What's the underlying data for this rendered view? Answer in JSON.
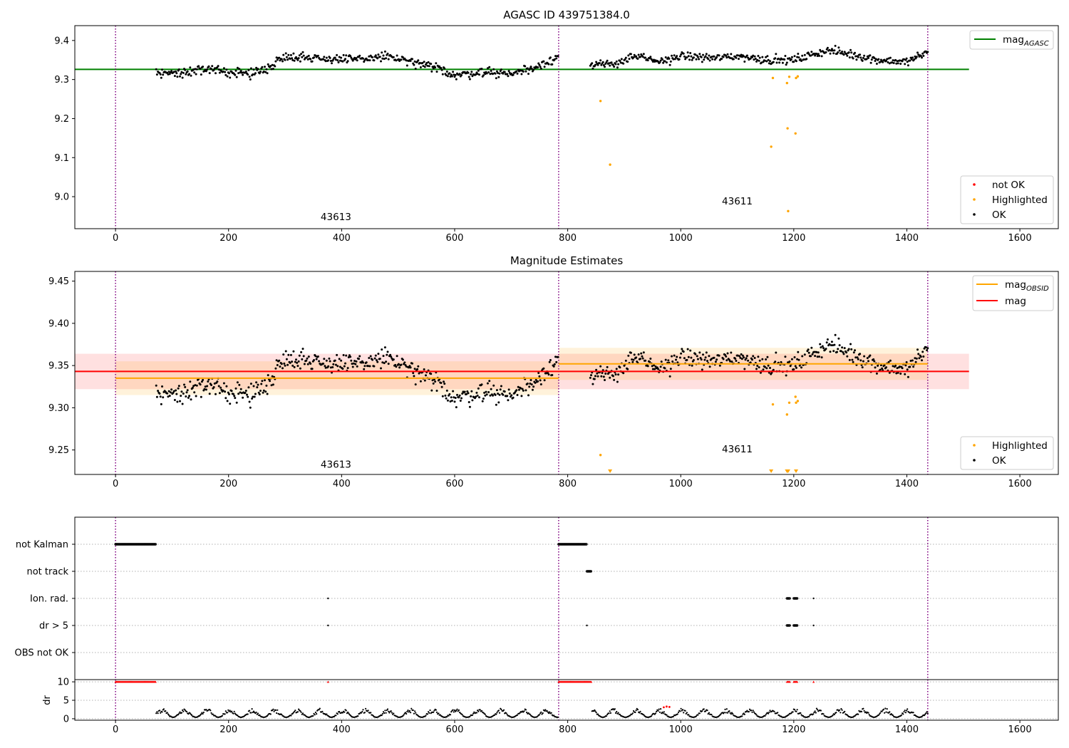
{
  "colors": {
    "ok": "#000000",
    "highlighted": "#ffa500",
    "not_ok": "#ff0000",
    "mag_agasc": "#008000",
    "mag_obsid": "#ffa500",
    "mag": "#ff0000",
    "obs_boundary": "#800080"
  },
  "chart_data": [
    {
      "type": "scatter",
      "title": "AGASC ID 439751384.0",
      "xlim": [
        -72,
        1668
      ],
      "ylim": [
        8.918,
        9.438
      ],
      "xticks": [
        0,
        200,
        400,
        600,
        800,
        1000,
        1200,
        1400,
        1600
      ],
      "yticks": [
        9.0,
        9.1,
        9.2,
        9.3,
        9.4
      ],
      "yticklabels": [
        "9.0",
        "9.1",
        "9.2",
        "9.3",
        "9.4"
      ],
      "obs_boundaries": [
        0,
        784,
        1437
      ],
      "obs_labels": [
        {
          "text": "43613",
          "x": 390,
          "y": 8.94
        },
        {
          "text": "43611",
          "x": 1100,
          "y": 8.98
        }
      ],
      "lines": [
        {
          "name_main": "mag",
          "name_sub": "AGASC",
          "x": [
            -72,
            1510
          ],
          "y": 9.326,
          "color": "#008000"
        }
      ],
      "ok_segments": [
        {
          "x": [
            72,
            784
          ],
          "mean": 9.335,
          "noise": 0.018,
          "anchors": [
            [
              72,
              9.32
            ],
            [
              110,
              9.315
            ],
            [
              150,
              9.325
            ],
            [
              200,
              9.32
            ],
            [
              240,
              9.315
            ],
            [
              270,
              9.33
            ],
            [
              300,
              9.36
            ],
            [
              420,
              9.35
            ],
            [
              480,
              9.36
            ],
            [
              520,
              9.345
            ],
            [
              580,
              9.325
            ],
            [
              600,
              9.31
            ],
            [
              650,
              9.32
            ],
            [
              700,
              9.315
            ],
            [
              740,
              9.33
            ],
            [
              784,
              9.36
            ]
          ]
        },
        {
          "x": [
            840,
            1437
          ],
          "mean": 9.352,
          "noise": 0.016,
          "anchors": [
            [
              840,
              9.335
            ],
            [
              880,
              9.34
            ],
            [
              920,
              9.36
            ],
            [
              960,
              9.345
            ],
            [
              1000,
              9.36
            ],
            [
              1060,
              9.355
            ],
            [
              1100,
              9.36
            ],
            [
              1160,
              9.35
            ],
            [
              1200,
              9.35
            ],
            [
              1260,
              9.375
            ],
            [
              1300,
              9.365
            ],
            [
              1350,
              9.35
            ],
            [
              1400,
              9.345
            ],
            [
              1437,
              9.37
            ]
          ]
        }
      ],
      "highlighted": {
        "x": [
          858,
          875,
          1160,
          1163,
          1188,
          1189,
          1190,
          1192,
          1203,
          1204,
          1207
        ],
        "y": [
          9.245,
          9.082,
          9.128,
          9.304,
          9.291,
          9.175,
          8.963,
          9.307,
          9.162,
          9.304,
          9.308
        ]
      },
      "not_ok": {
        "x": [],
        "y": []
      },
      "legends": [
        {
          "position": "top-right",
          "entries": [
            {
              "kind": "line",
              "color": "#008000",
              "label_main": "mag",
              "label_sub": "AGASC"
            }
          ]
        },
        {
          "position": "bottom-right",
          "entries": [
            {
              "kind": "dot",
              "color": "#ff0000",
              "label_main": "not OK"
            },
            {
              "kind": "dot",
              "color": "#ffa500",
              "label_main": "Highlighted"
            },
            {
              "kind": "dot",
              "color": "#000000",
              "label_main": "OK"
            }
          ]
        }
      ]
    },
    {
      "type": "scatter",
      "title": "Magnitude Estimates",
      "xlim": [
        -72,
        1668
      ],
      "ylim": [
        9.221,
        9.4615
      ],
      "xticks": [
        0,
        200,
        400,
        600,
        800,
        1000,
        1200,
        1400,
        1600
      ],
      "yticks": [
        9.25,
        9.3,
        9.35,
        9.4,
        9.45
      ],
      "yticklabels": [
        "9.25",
        "9.30",
        "9.35",
        "9.40",
        "9.45"
      ],
      "obs_boundaries": [
        0,
        784,
        1437
      ],
      "obs_labels": [
        {
          "text": "43613",
          "x": 390,
          "y": 9.229
        },
        {
          "text": "43611",
          "x": 1100,
          "y": 9.247
        }
      ],
      "bands": [
        {
          "x": [
            -72,
            1510
          ],
          "y": [
            9.322,
            9.364
          ],
          "color": "#ff0000",
          "opacity": 0.12
        },
        {
          "x": [
            0,
            784
          ],
          "y": [
            9.315,
            9.355
          ],
          "color": "#ffa500",
          "opacity": 0.14
        },
        {
          "x": [
            784,
            1437
          ],
          "y": [
            9.333,
            9.371
          ],
          "color": "#ffa500",
          "opacity": 0.14
        }
      ],
      "lines": [
        {
          "name_main": "mag",
          "name_sub": "OBSID",
          "x": [
            0,
            784
          ],
          "y": 9.335,
          "color": "#ffa500"
        },
        {
          "name_main": "",
          "name_sub": "",
          "x": [
            784,
            1437
          ],
          "y": 9.352,
          "color": "#ffa500"
        },
        {
          "name_main": "mag",
          "name_sub": "",
          "x": [
            -72,
            1510
          ],
          "y": 9.343,
          "color": "#ff0000"
        }
      ],
      "ok_segments": [
        {
          "x": [
            72,
            784
          ],
          "mean": 9.335,
          "noise": 0.018,
          "anchors": [
            [
              72,
              9.32
            ],
            [
              110,
              9.315
            ],
            [
              150,
              9.325
            ],
            [
              200,
              9.32
            ],
            [
              240,
              9.315
            ],
            [
              270,
              9.33
            ],
            [
              300,
              9.36
            ],
            [
              420,
              9.35
            ],
            [
              480,
              9.36
            ],
            [
              520,
              9.345
            ],
            [
              580,
              9.325
            ],
            [
              600,
              9.31
            ],
            [
              650,
              9.32
            ],
            [
              700,
              9.315
            ],
            [
              740,
              9.33
            ],
            [
              784,
              9.36
            ]
          ]
        },
        {
          "x": [
            840,
            1437
          ],
          "mean": 9.352,
          "noise": 0.016,
          "anchors": [
            [
              840,
              9.335
            ],
            [
              880,
              9.34
            ],
            [
              920,
              9.36
            ],
            [
              960,
              9.345
            ],
            [
              1000,
              9.36
            ],
            [
              1060,
              9.355
            ],
            [
              1100,
              9.36
            ],
            [
              1160,
              9.35
            ],
            [
              1200,
              9.35
            ],
            [
              1260,
              9.375
            ],
            [
              1300,
              9.365
            ],
            [
              1350,
              9.35
            ],
            [
              1400,
              9.345
            ],
            [
              1437,
              9.37
            ]
          ]
        }
      ],
      "highlighted": {
        "x": [
          858,
          1163,
          1188,
          1192,
          1203,
          1204,
          1207
        ],
        "y": [
          9.244,
          9.304,
          9.292,
          9.306,
          9.313,
          9.306,
          9.308
        ]
      },
      "below_range": {
        "x": [
          875,
          1160,
          1188,
          1190,
          1204
        ],
        "color": "#ffa500"
      },
      "legends": [
        {
          "position": "top-right",
          "entries": [
            {
              "kind": "line",
              "color": "#ffa500",
              "label_main": "mag",
              "label_sub": "OBSID"
            },
            {
              "kind": "line",
              "color": "#ff0000",
              "label_main": "mag",
              "label_sub": ""
            }
          ]
        },
        {
          "position": "bottom-right",
          "entries": [
            {
              "kind": "dot",
              "color": "#ffa500",
              "label_main": "Highlighted"
            },
            {
              "kind": "dot",
              "color": "#000000",
              "label_main": "OK"
            }
          ]
        }
      ]
    },
    {
      "type": "scatter",
      "title": "",
      "xlim": [
        -72,
        1668
      ],
      "categories": [
        "not Kalman",
        "not track",
        "Ion. rad.",
        "dr > 5",
        "OBS not OK"
      ],
      "obs_boundaries": [
        0,
        784,
        1437
      ],
      "flags": [
        {
          "label": "not Kalman",
          "ranges": [
            [
              0,
              72
            ],
            [
              784,
              834
            ]
          ],
          "points": []
        },
        {
          "label": "not track",
          "ranges": [
            [
              834,
              842
            ]
          ],
          "points": []
        },
        {
          "label": "Ion. rad.",
          "ranges": [
            [
              1188,
              1193
            ],
            [
              1200,
              1207
            ]
          ],
          "points": [
            376,
            1235
          ]
        },
        {
          "label": "dr > 5",
          "ranges": [
            [
              1188,
              1193
            ],
            [
              1200,
              1207
            ]
          ],
          "points": [
            376,
            834,
            1235
          ]
        },
        {
          "label": "OBS not OK",
          "ranges": [],
          "points": []
        }
      ]
    },
    {
      "type": "scatter",
      "title": "",
      "ylabel": "dr",
      "xlim": [
        -72,
        1668
      ],
      "ylim": [
        -0.4,
        10.6
      ],
      "xticks": [
        0,
        200,
        400,
        600,
        800,
        1000,
        1200,
        1400,
        1600
      ],
      "yticks": [
        0,
        5,
        10
      ],
      "yticklabels": [
        "0",
        "5",
        "10"
      ],
      "obs_boundaries": [
        0,
        784,
        1437
      ],
      "capped_value": 10,
      "capped_ranges": [
        [
          0,
          72
        ],
        [
          784,
          842
        ],
        [
          1188,
          1193
        ],
        [
          1200,
          1207
        ]
      ],
      "capped_points": [
        376,
        1235
      ],
      "dr_series": {
        "x": [
          72,
          1437
        ],
        "gaps": [
          [
            784,
            842
          ]
        ],
        "low": 0.4,
        "high": 2.8,
        "period": 40
      },
      "dr_red_points": {
        "x": [
          970,
          975,
          980
        ],
        "y": [
          3.1,
          3.3,
          3.2
        ]
      }
    }
  ]
}
